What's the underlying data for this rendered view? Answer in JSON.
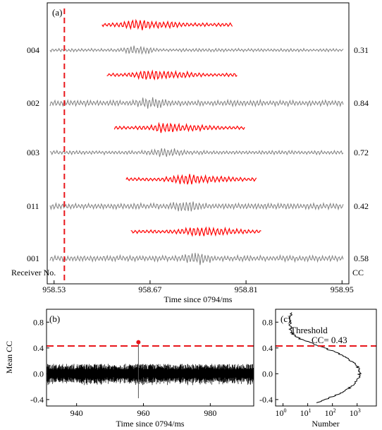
{
  "colors": {
    "template": "#ff0000",
    "record": "#808080",
    "noise": "#000000",
    "threshold": "#e8161b"
  },
  "chart_data": [
    {
      "panel": "(a)",
      "type": "line",
      "xlabel": "Time since 0794/ms",
      "xlim": [
        958.52,
        958.96
      ],
      "xticks": [
        958.53,
        958.67,
        958.81,
        958.95
      ],
      "row_label_header": "Receiver No.",
      "cc_header": "CC",
      "pick_time": 958.545,
      "traces": [
        {
          "receiver": "004",
          "cc": "0.31",
          "template_start": 958.6,
          "template_end": 958.79
        },
        {
          "receiver": "002",
          "cc": "0.84",
          "template_start": 958.607,
          "template_end": 958.797
        },
        {
          "receiver": "003",
          "cc": "0.72",
          "template_start": 958.618,
          "template_end": 958.808
        },
        {
          "receiver": "011",
          "cc": "0.42",
          "template_start": 958.635,
          "template_end": 958.825
        },
        {
          "receiver": "001",
          "cc": "0.58",
          "template_start": 958.642,
          "template_end": 958.832
        }
      ]
    },
    {
      "panel": "(b)",
      "type": "line",
      "xlabel": "Time since 0794/ms",
      "ylabel": "Mean CC",
      "xlim": [
        931,
        993
      ],
      "ylim": [
        -0.5,
        1.0
      ],
      "xticks": [
        940,
        960,
        980
      ],
      "yticks": [
        -0.4,
        0.0,
        0.4,
        0.8
      ],
      "threshold": 0.43,
      "peak": {
        "x": 958.5,
        "y": 0.49
      }
    },
    {
      "panel": "(c)",
      "type": "line",
      "xlabel": "Number",
      "xscale": "log",
      "xlim": [
        0.5,
        6000
      ],
      "xticks": [
        "10^0",
        "10^1",
        "10^2",
        "10^3"
      ],
      "ylim": [
        -0.5,
        1.0
      ],
      "yticks": [
        -0.4,
        0.0,
        0.4,
        0.8
      ],
      "threshold": 0.43,
      "annotation_line1": "Threshold",
      "annotation_line2": "CC= 0.43"
    }
  ]
}
